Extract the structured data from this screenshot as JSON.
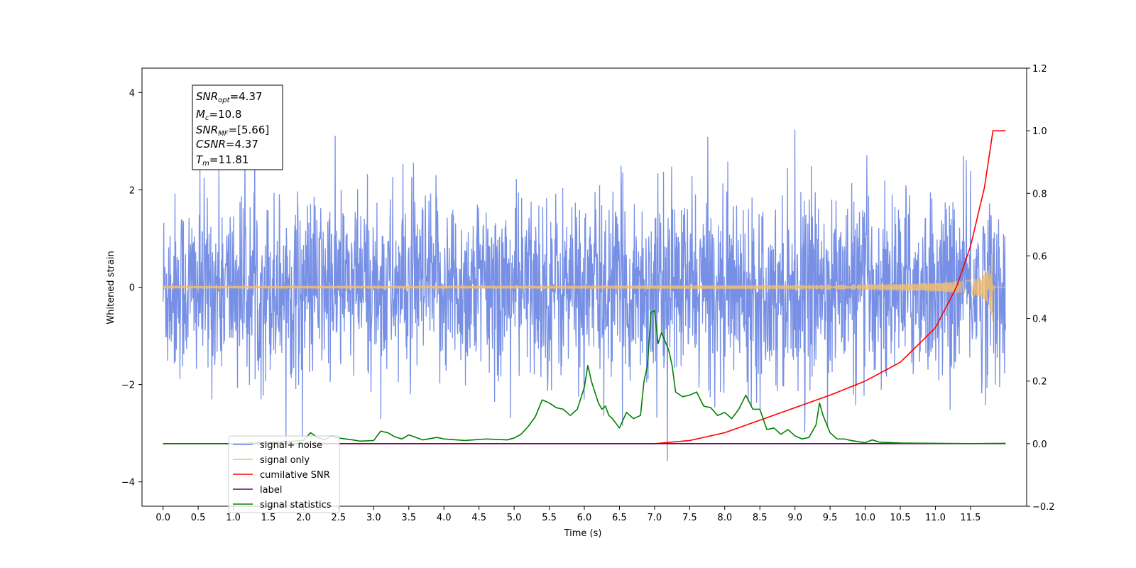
{
  "chart_data": {
    "type": "line",
    "xlabel": "Time (s)",
    "ylabel": "Whitened strain",
    "x_ticks": [
      "0.0",
      "0.5",
      "1.0",
      "1.5",
      "2.0",
      "2.5",
      "3.0",
      "3.5",
      "4.0",
      "4.5",
      "5.0",
      "5.5",
      "6.0",
      "6.5",
      "7.0",
      "7.5",
      "8.0",
      "8.5",
      "9.0",
      "9.5",
      "10.0",
      "10.5",
      "11.0",
      "11.5"
    ],
    "y_ticks_left": [
      "4",
      "2",
      "0",
      "−2",
      "−4"
    ],
    "y_ticks_right": [
      "1.2",
      "1.0",
      "0.8",
      "0.6",
      "0.4",
      "0.2",
      "0.0",
      "−0.2"
    ],
    "xlim": [
      -0.3,
      12.3
    ],
    "ylim_left": [
      -4.5,
      4.5
    ],
    "ylim_right": [
      -0.2,
      1.2
    ],
    "grid": false,
    "legend_position": "lower-left",
    "annotation": {
      "snr_opt": {
        "main": "SNR",
        "sub": "opt",
        "value": "=4.37"
      },
      "mc": {
        "main": "M",
        "sub": "c",
        "value": "=10.8"
      },
      "snr_mf": {
        "main": "SNR",
        "sub": "MF",
        "value": "=[5.66]"
      },
      "csnr": {
        "main": "CSNR",
        "value": "=4.37"
      },
      "tm": {
        "main": "T",
        "sub": "m",
        "value": "=11.81"
      }
    },
    "series": [
      {
        "name": "signal+ noise",
        "axis": "left",
        "color": "#6b87e3",
        "description_kind": "noise",
        "amplitude_std": 0.95,
        "x_range": [
          0.0,
          12.0
        ]
      },
      {
        "name": "signal only",
        "axis": "left",
        "color": "#f2be6e",
        "description_kind": "chirp",
        "x_range": [
          0.0,
          12.0
        ],
        "peak_time": 11.81,
        "peak_amplitude": 0.7
      },
      {
        "name": "cumilative SNR",
        "axis": "right",
        "color": "#ff0000",
        "x": [
          0.0,
          7.0,
          7.5,
          8.0,
          8.5,
          9.0,
          9.5,
          10.0,
          10.5,
          11.0,
          11.3,
          11.5,
          11.7,
          11.8,
          11.81,
          12.0
        ],
        "y": [
          0.0,
          0.0,
          0.01,
          0.035,
          0.075,
          0.115,
          0.155,
          0.2,
          0.26,
          0.37,
          0.5,
          0.63,
          0.82,
          0.97,
          1.0,
          1.0
        ]
      },
      {
        "name": "label",
        "axis": "right",
        "color": "#6a006a",
        "x": [
          0.0,
          12.0
        ],
        "y": [
          0.0,
          0.0
        ]
      },
      {
        "name": "signal statistics",
        "axis": "right",
        "color": "#008000",
        "x": [
          0.0,
          1.0,
          1.5,
          2.0,
          2.1,
          2.2,
          2.3,
          2.4,
          2.5,
          2.7,
          2.8,
          3.0,
          3.1,
          3.2,
          3.3,
          3.4,
          3.5,
          3.7,
          3.9,
          4.0,
          4.3,
          4.6,
          4.9,
          5.0,
          5.1,
          5.2,
          5.3,
          5.4,
          5.5,
          5.6,
          5.7,
          5.8,
          5.9,
          6.0,
          6.05,
          6.1,
          6.2,
          6.25,
          6.3,
          6.35,
          6.4,
          6.5,
          6.6,
          6.7,
          6.8,
          6.85,
          6.9,
          6.95,
          7.0,
          7.05,
          7.1,
          7.2,
          7.25,
          7.3,
          7.4,
          7.5,
          7.6,
          7.7,
          7.8,
          7.9,
          8.0,
          8.1,
          8.2,
          8.3,
          8.4,
          8.5,
          8.6,
          8.7,
          8.8,
          8.9,
          9.0,
          9.1,
          9.2,
          9.3,
          9.35,
          9.4,
          9.5,
          9.6,
          9.7,
          9.8,
          10.0,
          10.1,
          10.2,
          10.5,
          11.0,
          11.5,
          12.0
        ],
        "y": [
          0.0,
          0.0,
          0.003,
          0.01,
          0.035,
          0.02,
          0.012,
          0.025,
          0.018,
          0.012,
          0.008,
          0.01,
          0.04,
          0.035,
          0.022,
          0.015,
          0.028,
          0.012,
          0.02,
          0.015,
          0.01,
          0.015,
          0.012,
          0.018,
          0.03,
          0.055,
          0.085,
          0.14,
          0.13,
          0.115,
          0.11,
          0.09,
          0.11,
          0.18,
          0.25,
          0.2,
          0.13,
          0.11,
          0.12,
          0.09,
          0.08,
          0.05,
          0.1,
          0.08,
          0.09,
          0.2,
          0.25,
          0.42,
          0.425,
          0.32,
          0.355,
          0.3,
          0.25,
          0.165,
          0.15,
          0.155,
          0.165,
          0.12,
          0.115,
          0.09,
          0.1,
          0.08,
          0.11,
          0.155,
          0.11,
          0.11,
          0.045,
          0.05,
          0.03,
          0.045,
          0.025,
          0.015,
          0.02,
          0.06,
          0.13,
          0.09,
          0.035,
          0.015,
          0.015,
          0.01,
          0.003,
          0.012,
          0.005,
          0.002,
          0.001,
          0.0,
          0.001
        ]
      }
    ]
  }
}
